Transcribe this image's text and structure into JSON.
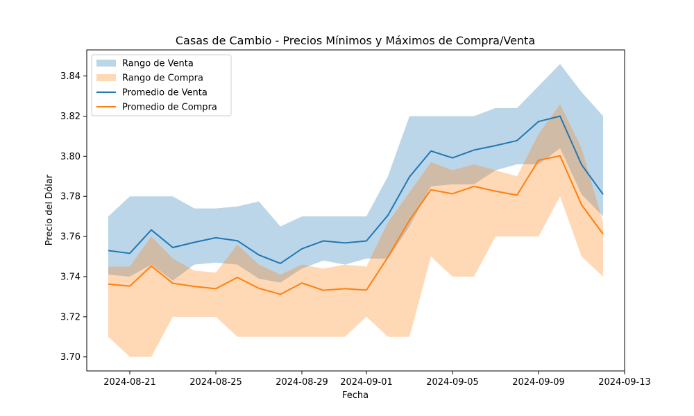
{
  "chart_data": {
    "type": "area",
    "title": "Casas de Cambio - Precios Mínimos y Máximos de Compra/Venta",
    "xlabel": "Fecha",
    "ylabel": "Precio del Dólar",
    "x": [
      "2024-08-20",
      "2024-08-21",
      "2024-08-22",
      "2024-08-23",
      "2024-08-24",
      "2024-08-25",
      "2024-08-26",
      "2024-08-27",
      "2024-08-28",
      "2024-08-29",
      "2024-08-30",
      "2024-08-31",
      "2024-09-01",
      "2024-09-02",
      "2024-09-03",
      "2024-09-04",
      "2024-09-05",
      "2024-09-06",
      "2024-09-07",
      "2024-09-08",
      "2024-09-09",
      "2024-09-10",
      "2024-09-11",
      "2024-09-12"
    ],
    "xlim": [
      "2024-08-19",
      "2024-09-13"
    ],
    "ylim": [
      3.693,
      3.853
    ],
    "x_ticks": [
      "2024-08-21",
      "2024-08-25",
      "2024-08-29",
      "2024-09-01",
      "2024-09-05",
      "2024-09-09",
      "2024-09-13"
    ],
    "y_ticks": [
      3.7,
      3.72,
      3.74,
      3.76,
      3.78,
      3.8,
      3.82,
      3.84
    ],
    "grid": false,
    "legend_position": "top-left",
    "series": [
      {
        "name": "Rango de Venta",
        "kind": "band",
        "color": "#1f77b4",
        "opacity": 0.3,
        "upper": [
          3.77,
          3.78,
          3.78,
          3.78,
          3.774,
          3.774,
          3.775,
          3.7775,
          3.765,
          3.77,
          3.77,
          3.77,
          3.77,
          3.79,
          3.82,
          3.82,
          3.82,
          3.82,
          3.824,
          3.824,
          3.835,
          3.846,
          3.832,
          3.82
        ],
        "lower": [
          3.741,
          3.74,
          3.746,
          3.738,
          3.746,
          3.747,
          3.746,
          3.739,
          3.737,
          3.744,
          3.748,
          3.746,
          3.749,
          3.749,
          3.765,
          3.785,
          3.786,
          3.786,
          3.793,
          3.796,
          3.796,
          3.804,
          3.781,
          3.77
        ]
      },
      {
        "name": "Rango de Compra",
        "kind": "band",
        "color": "#ff7f0e",
        "opacity": 0.3,
        "upper": [
          3.745,
          3.745,
          3.76,
          3.749,
          3.743,
          3.742,
          3.756,
          3.746,
          3.741,
          3.746,
          3.744,
          3.746,
          3.745,
          3.767,
          3.782,
          3.797,
          3.793,
          3.796,
          3.793,
          3.79,
          3.811,
          3.826,
          3.804,
          3.767
        ],
        "lower": [
          3.71,
          3.7,
          3.7,
          3.72,
          3.72,
          3.72,
          3.71,
          3.71,
          3.71,
          3.71,
          3.71,
          3.71,
          3.72,
          3.71,
          3.71,
          3.75,
          3.74,
          3.74,
          3.76,
          3.76,
          3.76,
          3.78,
          3.75,
          3.74
        ]
      },
      {
        "name": "Promedio de Venta",
        "kind": "line",
        "color": "#1f77b4",
        "values": [
          3.753,
          3.7516,
          3.7633,
          3.7545,
          3.7571,
          3.7594,
          3.7579,
          3.7508,
          3.7466,
          3.7539,
          3.7578,
          3.7568,
          3.7578,
          3.7706,
          3.7897,
          3.8026,
          3.7992,
          3.8031,
          3.8053,
          3.8078,
          3.8173,
          3.82,
          3.7958,
          3.781
        ]
      },
      {
        "name": "Promedio de Compra",
        "kind": "line",
        "color": "#ff7f0e",
        "values": [
          3.7363,
          3.7353,
          3.7453,
          3.7367,
          3.7351,
          3.734,
          3.7396,
          3.7342,
          3.7312,
          3.7368,
          3.7332,
          3.734,
          3.7333,
          3.7498,
          3.7681,
          3.7833,
          3.7813,
          3.785,
          3.7826,
          3.7806,
          3.798,
          3.8002,
          3.7758,
          3.7612
        ]
      }
    ]
  }
}
